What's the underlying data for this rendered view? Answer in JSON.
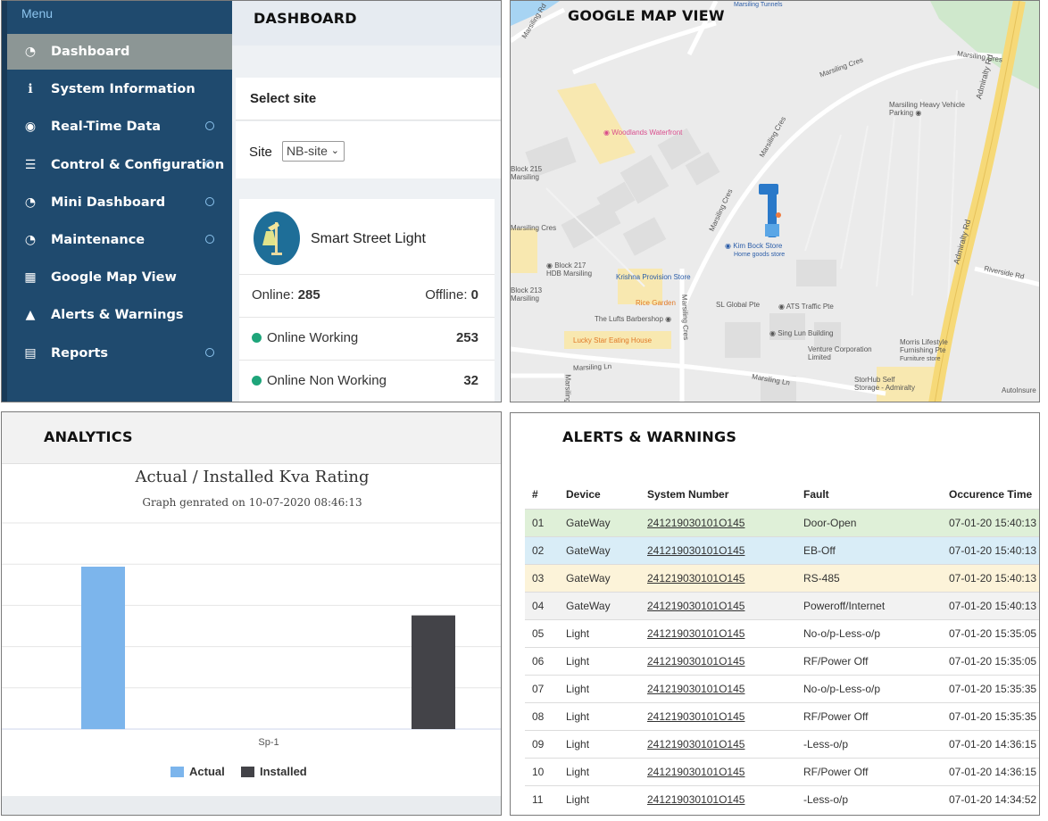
{
  "dashboard": {
    "panel_title": "DASHBOARD",
    "menu_label": "Menu",
    "menu_items": [
      {
        "label": "Dashboard",
        "icon": "gauge-icon",
        "active": true,
        "has_dot": false
      },
      {
        "label": "System Information",
        "icon": "info-icon",
        "active": false,
        "has_dot": false
      },
      {
        "label": "Real-Time Data",
        "icon": "eye-icon",
        "active": false,
        "has_dot": true
      },
      {
        "label": "Control & Configuration",
        "icon": "server-icon",
        "active": false,
        "has_dot": true
      },
      {
        "label": "Mini Dashboard",
        "icon": "gauge-icon",
        "active": false,
        "has_dot": true
      },
      {
        "label": "Maintenance",
        "icon": "gauge-icon",
        "active": false,
        "has_dot": true
      },
      {
        "label": "Google Map View",
        "icon": "map-icon",
        "active": false,
        "has_dot": false
      },
      {
        "label": "Alerts & Warnings",
        "icon": "bell-icon",
        "active": false,
        "has_dot": false
      },
      {
        "label": "Reports",
        "icon": "list-icon",
        "active": false,
        "has_dot": true
      }
    ],
    "select_site_label": "Select site",
    "site_label": "Site",
    "site_value": "NB-site",
    "card_title": "Smart Street Light",
    "online_label": "Online:",
    "online_value": "285",
    "offline_label": "Offline:",
    "offline_value": "0",
    "online_working_label": "Online Working",
    "online_working_value": "253",
    "online_nonworking_label": "Online Non Working",
    "online_nonworking_value": "32",
    "colors": {
      "sidebar": "#1f4a6e",
      "active": "#8c9695",
      "status_green": "#1ea57a"
    }
  },
  "map": {
    "panel_title": "GOOGLE MAP VIEW",
    "road_labels": [
      "Marsiling Rd",
      "Marsiling Cres",
      "Marsiling Cres",
      "Marsiling Cres",
      "Marsiling Cres",
      "Marsiling Cres",
      "Marsiling Ln",
      "Marsiling Ln",
      "Admiralty Rd",
      "Admiralty Rd",
      "Riverside Rd",
      "Marsiling Cres",
      "Marsiling"
    ],
    "pois": [
      {
        "name": "Woodlands Waterfront",
        "color": "#d94d8c"
      },
      {
        "name": "Marsiling Heavy Vehicle Parking",
        "color": "#555555"
      },
      {
        "name": "Block 215 Marsiling",
        "color": "#555555"
      },
      {
        "name": "Kim Bock Store",
        "sub": "Home goods store",
        "color": "#2b5da8"
      },
      {
        "name": "Krishna Provision Store",
        "color": "#2b5da8"
      },
      {
        "name": "Block 217 HDB Marsiling",
        "color": "#555555"
      },
      {
        "name": "Block 213 Marsiling",
        "color": "#555555"
      },
      {
        "name": "Rice Garden",
        "color": "#e07a28"
      },
      {
        "name": "SL Global Pte",
        "color": "#555555"
      },
      {
        "name": "ATS Traffic Pte",
        "color": "#555555"
      },
      {
        "name": "The Lufts Barbershop",
        "color": "#555555"
      },
      {
        "name": "Sing Lun Building",
        "color": "#555555"
      },
      {
        "name": "Lucky Star Eating House",
        "color": "#e07a28"
      },
      {
        "name": "Venture Corporation Limited",
        "color": "#555555"
      },
      {
        "name": "Morris Lifestyle Furnishing Pte",
        "sub": "Furniture store",
        "color": "#555555"
      },
      {
        "name": "StorHub Self Storage - Admiralty",
        "color": "#555555"
      },
      {
        "name": "AutoInsure",
        "color": "#555555"
      },
      {
        "name": "Marsiling Tunnels",
        "color": "#2b5da8"
      }
    ],
    "colors": {
      "road_major": "#f6d978",
      "water": "#a7d4f3",
      "park": "#cfe8cc"
    }
  },
  "analytics": {
    "panel_title": "ANALYTICS",
    "footer_empty": ""
  },
  "chart_data": {
    "type": "bar",
    "title": "Actual / Installed Kva Rating",
    "subtitle": "Graph genrated on 10-07-2020 08:46:13",
    "categories": [
      "Sp-1"
    ],
    "series": [
      {
        "name": "Actual",
        "values": [
          100
        ],
        "color": "#7cb5ec"
      },
      {
        "name": "Installed",
        "values": [
          70
        ],
        "color": "#434348"
      }
    ],
    "ylim": [
      0,
      100
    ],
    "grid": true,
    "legend": "bottom-center"
  },
  "alerts": {
    "panel_title": "ALERTS & WARNINGS",
    "columns": [
      "#",
      "Device",
      "System Number",
      "Fault",
      "Occurence Time"
    ],
    "rows": [
      {
        "no": "01",
        "device": "GateWay",
        "system": "241219030101O145",
        "fault": "Door-Open",
        "time": "07-01-20 15:40:13",
        "bg": "#dff0d8"
      },
      {
        "no": "02",
        "device": "GateWay",
        "system": "241219030101O145",
        "fault": "EB-Off",
        "time": "07-01-20 15:40:13",
        "bg": "#d9edf7"
      },
      {
        "no": "03",
        "device": "GateWay",
        "system": "241219030101O145",
        "fault": "RS-485",
        "time": "07-01-20 15:40:13",
        "bg": "#fcf3d9"
      },
      {
        "no": "04",
        "device": "GateWay",
        "system": "241219030101O145",
        "fault": "Poweroff/Internet",
        "time": "07-01-20 15:40:13",
        "bg": "#f2f2f2"
      },
      {
        "no": "05",
        "device": "Light",
        "system": "241219030101O145",
        "fault": "No-o/p-Less-o/p",
        "time": "07-01-20 15:35:05",
        "bg": "#ffffff"
      },
      {
        "no": "06",
        "device": "Light",
        "system": "241219030101O145",
        "fault": "RF/Power Off",
        "time": "07-01-20 15:35:05",
        "bg": "#ffffff"
      },
      {
        "no": "07",
        "device": "Light",
        "system": "241219030101O145",
        "fault": "No-o/p-Less-o/p",
        "time": "07-01-20 15:35:35",
        "bg": "#ffffff"
      },
      {
        "no": "08",
        "device": "Light",
        "system": "241219030101O145",
        "fault": "RF/Power Off",
        "time": "07-01-20 15:35:35",
        "bg": "#ffffff"
      },
      {
        "no": "09",
        "device": "Light",
        "system": "241219030101O145",
        "fault": "-Less-o/p",
        "time": "07-01-20 14:36:15",
        "bg": "#ffffff"
      },
      {
        "no": "10",
        "device": "Light",
        "system": "241219030101O145",
        "fault": "RF/Power Off",
        "time": "07-01-20 14:36:15",
        "bg": "#ffffff"
      },
      {
        "no": "11",
        "device": "Light",
        "system": "241219030101O145",
        "fault": "-Less-o/p",
        "time": "07-01-20 14:34:52",
        "bg": "#ffffff"
      }
    ]
  }
}
